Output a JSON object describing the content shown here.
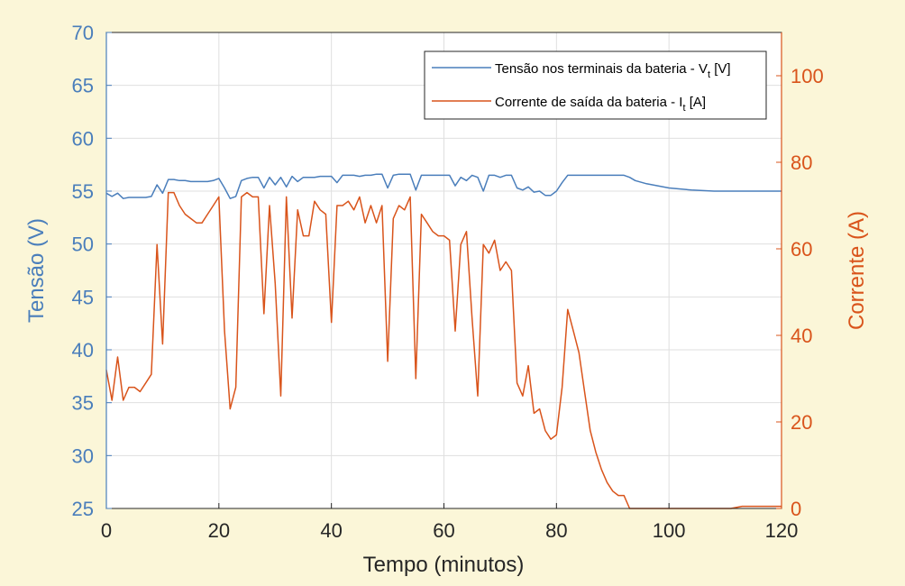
{
  "chart_data": {
    "type": "line",
    "xlabel": "Tempo (minutos)",
    "ylabel_left": "Tensão (V)",
    "ylabel_right": "Corrente (A)",
    "xlim": [
      0,
      120
    ],
    "ylim_left": [
      25,
      70
    ],
    "ylim_right": [
      0,
      110
    ],
    "xticks": [
      "0",
      "20",
      "40",
      "60",
      "80",
      "100",
      "120"
    ],
    "yticks_left": [
      "25",
      "30",
      "35",
      "40",
      "45",
      "50",
      "55",
      "60",
      "65",
      "70"
    ],
    "yticks_right": [
      "0",
      "20",
      "40",
      "60",
      "80",
      "100"
    ],
    "grid": true,
    "legend_position": "top-right",
    "colors": {
      "voltage": "#4a7ebb",
      "current": "#d9541b",
      "background": "#fbf6d8"
    },
    "series": [
      {
        "name": "Tensão nos terminais da bateria - V",
        "name_sub": "t",
        "name_suffix": " [V]",
        "axis": "left",
        "x": [
          0,
          1,
          2,
          3,
          4,
          5,
          6,
          7,
          8,
          9,
          10,
          11,
          12,
          13,
          14,
          15,
          16,
          17,
          18,
          19,
          20,
          21,
          22,
          23,
          24,
          25,
          26,
          27,
          28,
          29,
          30,
          31,
          32,
          33,
          34,
          35,
          36,
          37,
          38,
          39,
          40,
          41,
          42,
          43,
          44,
          45,
          46,
          47,
          48,
          49,
          50,
          51,
          52,
          53,
          54,
          55,
          56,
          57,
          58,
          59,
          60,
          61,
          62,
          63,
          64,
          65,
          66,
          67,
          68,
          69,
          70,
          71,
          72,
          73,
          74,
          75,
          76,
          77,
          78,
          79,
          80,
          81,
          82,
          84,
          86,
          88,
          90,
          92,
          93,
          94,
          96,
          98,
          100,
          104,
          108,
          112,
          116,
          120
        ],
        "y": [
          54.8,
          54.5,
          54.8,
          54.3,
          54.4,
          54.4,
          54.4,
          54.4,
          54.5,
          55.6,
          54.8,
          56.1,
          56.1,
          56.0,
          56.0,
          55.9,
          55.9,
          55.9,
          55.9,
          56.0,
          56.2,
          55.3,
          54.3,
          54.5,
          56.0,
          56.2,
          56.3,
          56.3,
          55.3,
          56.3,
          55.6,
          56.3,
          55.4,
          56.4,
          55.9,
          56.3,
          56.3,
          56.3,
          56.4,
          56.4,
          56.4,
          55.8,
          56.5,
          56.5,
          56.5,
          56.4,
          56.5,
          56.5,
          56.6,
          56.6,
          55.3,
          56.5,
          56.6,
          56.6,
          56.6,
          55.1,
          56.5,
          56.5,
          56.5,
          56.5,
          56.5,
          56.5,
          55.5,
          56.3,
          56.0,
          56.5,
          56.3,
          55.0,
          56.5,
          56.5,
          56.3,
          56.5,
          56.5,
          55.3,
          55.1,
          55.4,
          54.9,
          55.0,
          54.6,
          54.6,
          55.0,
          55.8,
          56.5,
          56.5,
          56.5,
          56.5,
          56.5,
          56.5,
          56.3,
          56.0,
          55.7,
          55.5,
          55.3,
          55.1,
          55.0,
          55.0,
          55.0,
          55.0
        ]
      },
      {
        "name": "Corrente de saída da bateria - I",
        "name_sub": "t",
        "name_suffix": " [A]",
        "axis": "right",
        "x": [
          0,
          1,
          2,
          3,
          4,
          5,
          6,
          7,
          8,
          9,
          10,
          11,
          12,
          13,
          14,
          15,
          16,
          17,
          18,
          19,
          20,
          21,
          22,
          23,
          24,
          25,
          26,
          27,
          28,
          29,
          30,
          31,
          32,
          33,
          34,
          35,
          36,
          37,
          38,
          39,
          40,
          41,
          42,
          43,
          44,
          45,
          46,
          47,
          48,
          49,
          50,
          51,
          52,
          53,
          54,
          55,
          56,
          57,
          58,
          59,
          60,
          61,
          62,
          63,
          64,
          65,
          66,
          67,
          68,
          69,
          70,
          71,
          72,
          73,
          74,
          75,
          76,
          77,
          78,
          79,
          80,
          81,
          82,
          83,
          84,
          85,
          86,
          87,
          88,
          89,
          90,
          91,
          92,
          93,
          94,
          100,
          105,
          108,
          111,
          113,
          116,
          120
        ],
        "y": [
          32,
          25,
          35,
          25,
          28,
          28,
          27,
          29,
          31,
          61,
          38,
          73,
          73,
          70,
          68,
          67,
          66,
          66,
          68,
          70,
          72,
          41,
          23,
          28,
          72,
          73,
          72,
          72,
          45,
          70,
          52,
          26,
          72,
          44,
          69,
          63,
          63,
          71,
          69,
          68,
          43,
          70,
          70,
          71,
          69,
          72,
          66,
          70,
          66,
          70,
          34,
          67,
          70,
          69,
          72,
          30,
          68,
          66,
          64,
          63,
          63,
          62,
          41,
          61,
          64,
          44,
          26,
          61,
          59,
          62,
          55,
          57,
          55,
          29,
          26,
          33,
          22,
          23,
          18,
          16,
          17,
          28,
          46,
          41,
          36,
          27,
          18,
          13,
          9,
          6,
          4,
          3,
          3,
          0,
          0,
          0,
          0,
          0,
          0,
          0.5,
          0.5,
          0.5
        ]
      }
    ]
  }
}
